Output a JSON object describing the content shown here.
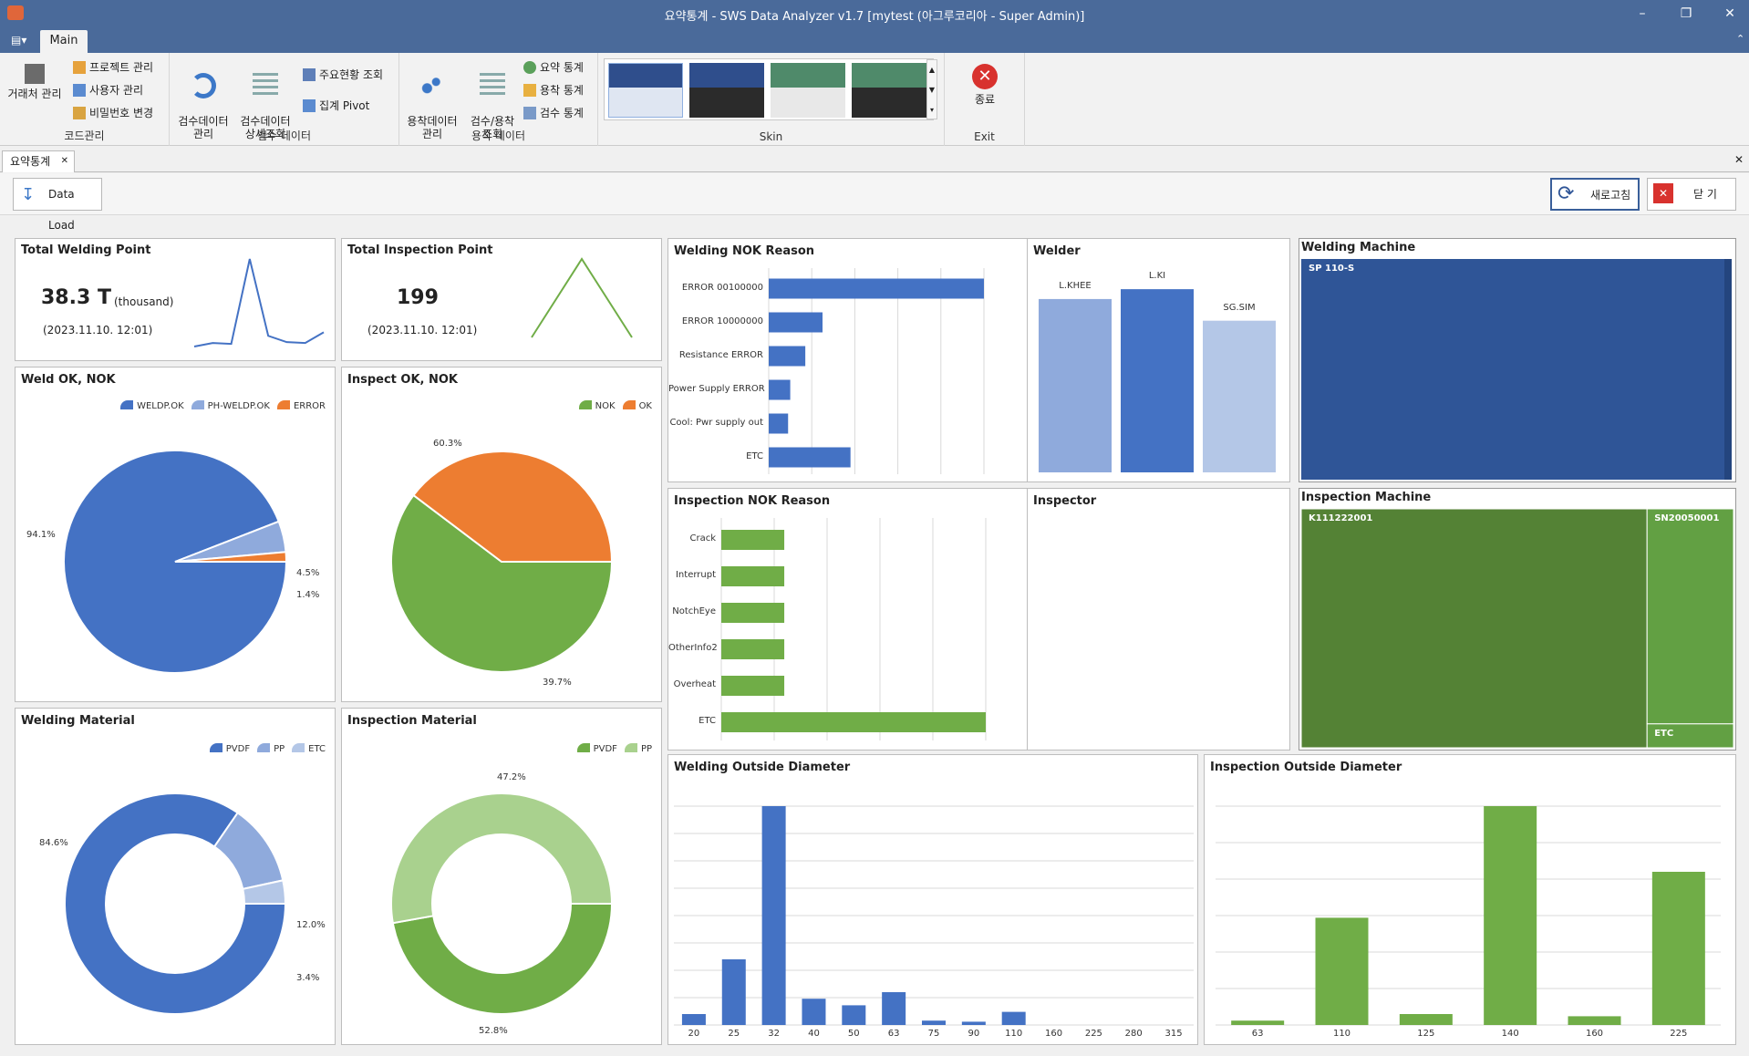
{
  "window": {
    "title": "요약통계 - SWS Data Analyzer v1.7 [mytest (아그루코리아 - Super Admin)]"
  },
  "ribbon": {
    "tab": "Main",
    "groups": [
      {
        "label": "코드관리",
        "big": "거래처 관리",
        "small": [
          "프로젝트 관리",
          "사용자 관리",
          "비밀번호 변경"
        ]
      },
      {
        "label": "검수 데이터",
        "big1": "검수데이터\n관리",
        "big2": "검수데이터\n상세조회",
        "small": [
          "주요현황 조회",
          "집계 Pivot"
        ]
      },
      {
        "label": "용착 데이터",
        "big1": "용착데이터\n관리",
        "big2": "검수/용착\n조회",
        "small": [
          "요약 통계",
          "용착 통계",
          "검수 통계"
        ]
      },
      {
        "label": "Skin"
      },
      {
        "label": "Exit",
        "big": "종료"
      }
    ]
  },
  "doctab": {
    "label": "요약통계"
  },
  "toolbar": {
    "load": "Data Load",
    "refresh": "새로고침",
    "close": "닫 기"
  },
  "colors": {
    "blue": "#4472c4",
    "lightblue": "#8faadc",
    "paleblue": "#b4c7e7",
    "orange": "#ed7d31",
    "green": "#70ad47",
    "lightgreen": "#a9d18e",
    "darkblue": "#2f5597",
    "darkgreen": "#548235"
  },
  "kpi": {
    "welding": {
      "title": "Total Welding Point",
      "value": "38.3 T",
      "unit": "(thousand)",
      "date": "(2023.11.10. 12:01)",
      "trend": [
        2,
        6,
        5,
        100,
        14,
        7,
        6,
        18
      ]
    },
    "inspection": {
      "title": "Total Inspection Point",
      "value": "199",
      "date": "(2023.11.10. 12:01)",
      "trend": [
        0,
        100,
        0
      ]
    }
  },
  "panels": {
    "weld_ok": "Weld OK, NOK",
    "inspect_ok": "Inspect OK, NOK",
    "weld_mat": "Welding Material",
    "insp_mat": "Inspection Material",
    "weld_nok": "Welding NOK Reason",
    "insp_nok": "Inspection NOK Reason",
    "welder": "Welder",
    "inspector": "Inspector",
    "weld_machine": "Welding Machine",
    "insp_machine": "Inspection Machine",
    "weld_od": "Welding Outside Diameter",
    "insp_od": "Inspection Outside Diameter"
  },
  "chart_data": [
    {
      "id": "weld_ok",
      "type": "pie",
      "labels": [
        "WELDP.OK",
        "PH-WELDP.OK",
        "ERROR"
      ],
      "values": [
        94.1,
        4.5,
        1.4
      ],
      "data_labels": [
        "94.1%",
        "4.5%",
        "1.4%"
      ]
    },
    {
      "id": "inspect_ok",
      "type": "pie",
      "labels": [
        "NOK",
        "OK"
      ],
      "values": [
        60.3,
        39.7
      ],
      "data_labels": [
        "60.3%",
        "39.7%"
      ]
    },
    {
      "id": "weld_mat",
      "type": "pie",
      "labels": [
        "PVDF",
        "PP",
        "ETC"
      ],
      "values": [
        84.6,
        12.0,
        3.4
      ],
      "data_labels": [
        "84.6%",
        "12.0%",
        "3.4%"
      ]
    },
    {
      "id": "insp_mat",
      "type": "pie",
      "labels": [
        "PVDF",
        "PP"
      ],
      "values": [
        47.2,
        52.8
      ],
      "data_labels": [
        "47.2%",
        "52.8%"
      ]
    },
    {
      "id": "weld_nok",
      "type": "bar",
      "categories": [
        "ERROR 00100000",
        "ERROR 10000000",
        "Resistance ERROR",
        "Power Supply ERROR",
        "Cool: Pwr supply out",
        "ETC"
      ],
      "values": [
        100,
        25,
        17,
        10,
        9,
        38
      ]
    },
    {
      "id": "insp_nok",
      "type": "bar",
      "categories": [
        "Crack",
        "Interrupt",
        "NotchEye",
        "OtherInfo2",
        "Overheat",
        "ETC"
      ],
      "values": [
        1,
        1,
        1,
        1,
        1,
        4.2
      ]
    },
    {
      "id": "welder",
      "type": "bar",
      "categories": [
        "L.KHEE",
        "L.KI",
        "SG.SIM"
      ],
      "values": [
        88,
        93,
        77
      ]
    },
    {
      "id": "weld_machine",
      "type": "treemap",
      "labels": [
        "SP 110-S"
      ],
      "values": [
        100
      ]
    },
    {
      "id": "insp_machine",
      "type": "treemap",
      "labels": [
        "K111222001",
        "SN20050001",
        "ETC"
      ],
      "values": [
        80,
        18,
        2
      ]
    },
    {
      "id": "weld_od",
      "type": "bar",
      "categories": [
        "20",
        "25",
        "32",
        "40",
        "50",
        "63",
        "75",
        "90",
        "110",
        "160",
        "225",
        "280",
        "315"
      ],
      "values": [
        5,
        30,
        100,
        12,
        9,
        15,
        2,
        1.5,
        6,
        0,
        0,
        0,
        0
      ]
    },
    {
      "id": "insp_od",
      "type": "bar",
      "categories": [
        "63",
        "110",
        "125",
        "140",
        "160",
        "225"
      ],
      "values": [
        2,
        49,
        5,
        100,
        4,
        70
      ]
    }
  ]
}
